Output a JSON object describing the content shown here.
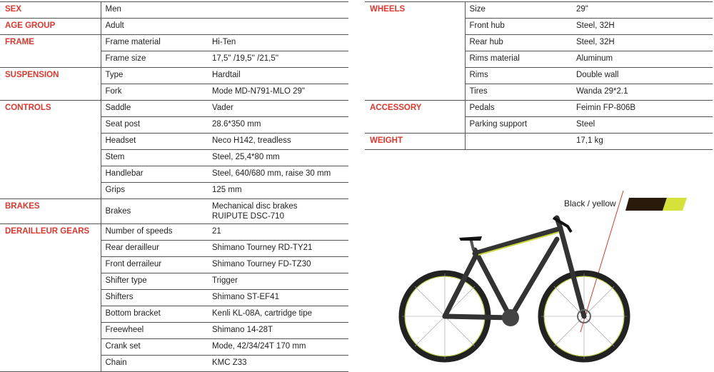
{
  "left_sections": [
    {
      "category": "SEX",
      "rows": [
        {
          "value": "Men"
        }
      ]
    },
    {
      "category": "AGE GROUP",
      "rows": [
        {
          "value": "Adult"
        }
      ]
    },
    {
      "category": "FRAME",
      "rows": [
        {
          "label": "Frame material",
          "value": "Hi-Ten"
        },
        {
          "label": "Frame size",
          "value": "17,5'' /19,5'' /21,5''"
        }
      ]
    },
    {
      "category": "SUSPENSION",
      "rows": [
        {
          "label": "Type",
          "value": "Hardtail"
        },
        {
          "label": "Fork",
          "value": "Mode MD-N791-MLO 29\""
        }
      ]
    },
    {
      "category": "CONTROLS",
      "rows": [
        {
          "label": "Saddle",
          "value": "Vader"
        },
        {
          "label": "Seat post",
          "value": "28.6*350 mm"
        },
        {
          "label": "Headset",
          "value": "Neco H142, treadless"
        },
        {
          "label": "Stem",
          "value": "Steel, 25,4*80 mm"
        },
        {
          "label": "Handlebar",
          "value": "Steel, 640/680 mm, raise 30 mm"
        },
        {
          "label": "Grips",
          "value": "125 mm"
        }
      ]
    },
    {
      "category": "BRAKES",
      "rows": [
        {
          "label": "Brakes",
          "value": "Mechanical disc brakes",
          "value2": "RUIPUTE DSC-710"
        }
      ]
    },
    {
      "category": "DERAILLEUR GEARS",
      "rows": [
        {
          "label": "Number of speeds",
          "value": "21"
        },
        {
          "label": "Rear derailleur",
          "value": "Shimano Tourney RD-TY21"
        },
        {
          "label": "Front derraileur",
          "value": "Shimano Tourney FD-TZ30"
        },
        {
          "label": "Shifter type",
          "value": "Trigger"
        },
        {
          "label": "Shifters",
          "value": "Shimano ST-EF41"
        },
        {
          "label": "Bottom bracket",
          "value": "Kenli KL-08A, cartridge tipe"
        },
        {
          "label": "Freewheel",
          "value": "Shimano 14-28T"
        },
        {
          "label": "Crank set",
          "value": "Mode, 42/34/24T 170 mm"
        },
        {
          "label": "Chain",
          "value": "KMC Z33"
        }
      ]
    }
  ],
  "right_sections": [
    {
      "category": "WHEELS",
      "rows": [
        {
          "label": "Size",
          "value": "29\""
        },
        {
          "label": "Front hub",
          "value": "Steel, 32H"
        },
        {
          "label": "Rear hub",
          "value": "Steel, 32H"
        },
        {
          "label": "Rims material",
          "value": "Aluminum"
        },
        {
          "label": "Rims",
          "value": "Double wall"
        },
        {
          "label": "Tires",
          "value": "Wanda 29*2.1"
        }
      ]
    },
    {
      "category": "ACCESSORY",
      "rows": [
        {
          "label": "Pedals",
          "value": "Feimin FP-806B"
        },
        {
          "label": "Parking support",
          "value": "Steel"
        }
      ]
    },
    {
      "category": "WEIGHT",
      "rows": [
        {
          "label": "",
          "value": "17,1 kg"
        }
      ]
    }
  ],
  "color": {
    "label": "Black / yellow",
    "primary": "#2a1a0c",
    "secondary": "#d4e23a"
  },
  "accent": "#e0362c"
}
